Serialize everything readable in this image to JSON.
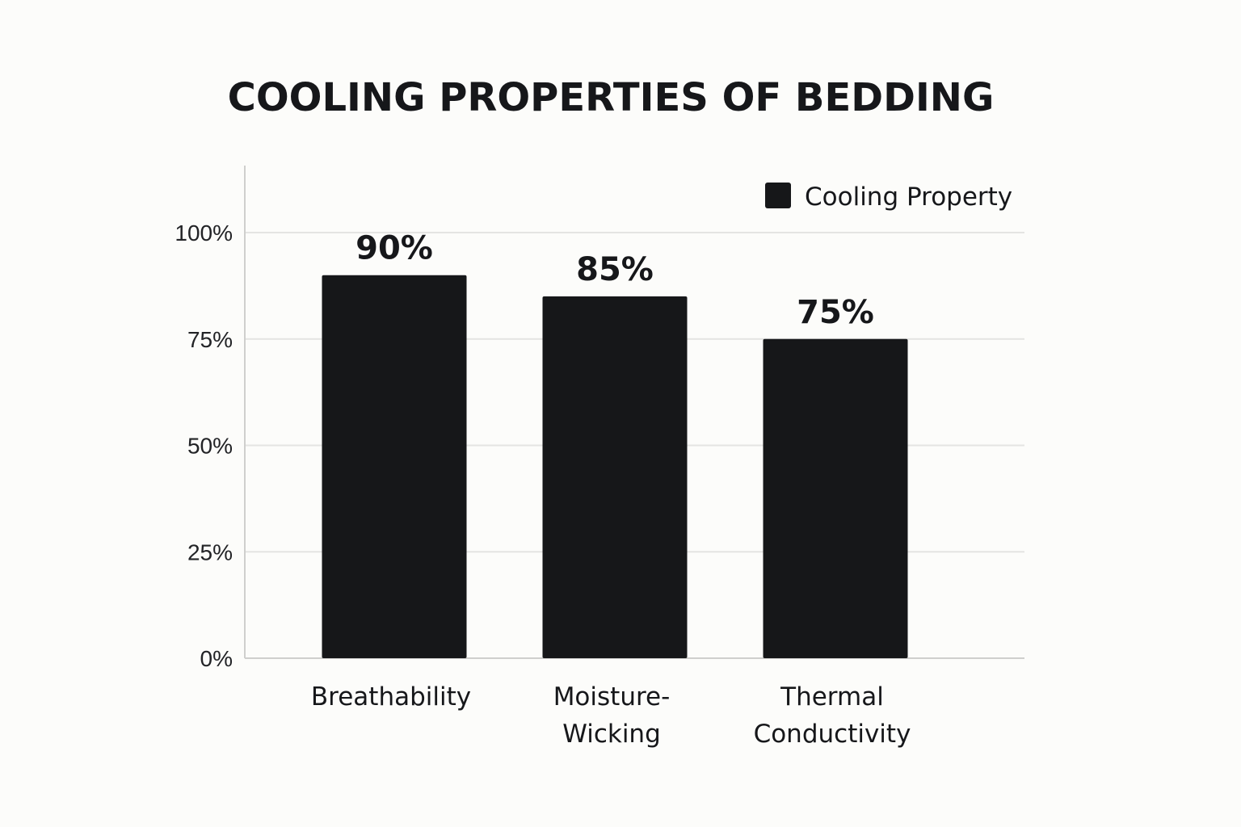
{
  "chart_data": {
    "type": "bar",
    "title": "COOLING PROPERTIES OF BEDDING",
    "categories": [
      [
        "Breathability"
      ],
      [
        "Moisture-",
        "Wicking"
      ],
      [
        "Thermal",
        "Conductivity"
      ]
    ],
    "series": [
      {
        "name": "Cooling Property",
        "values": [
          90,
          85,
          75
        ],
        "data_labels": [
          "90%",
          "85%",
          "75%"
        ],
        "color": "#161719"
      }
    ],
    "ylim": [
      0,
      115
    ],
    "yticks": [
      0,
      25,
      50,
      75,
      100
    ],
    "ytick_labels": [
      "0%",
      "25%",
      "50%",
      "75%",
      "100%"
    ],
    "grid": true,
    "legend": "top-right"
  }
}
